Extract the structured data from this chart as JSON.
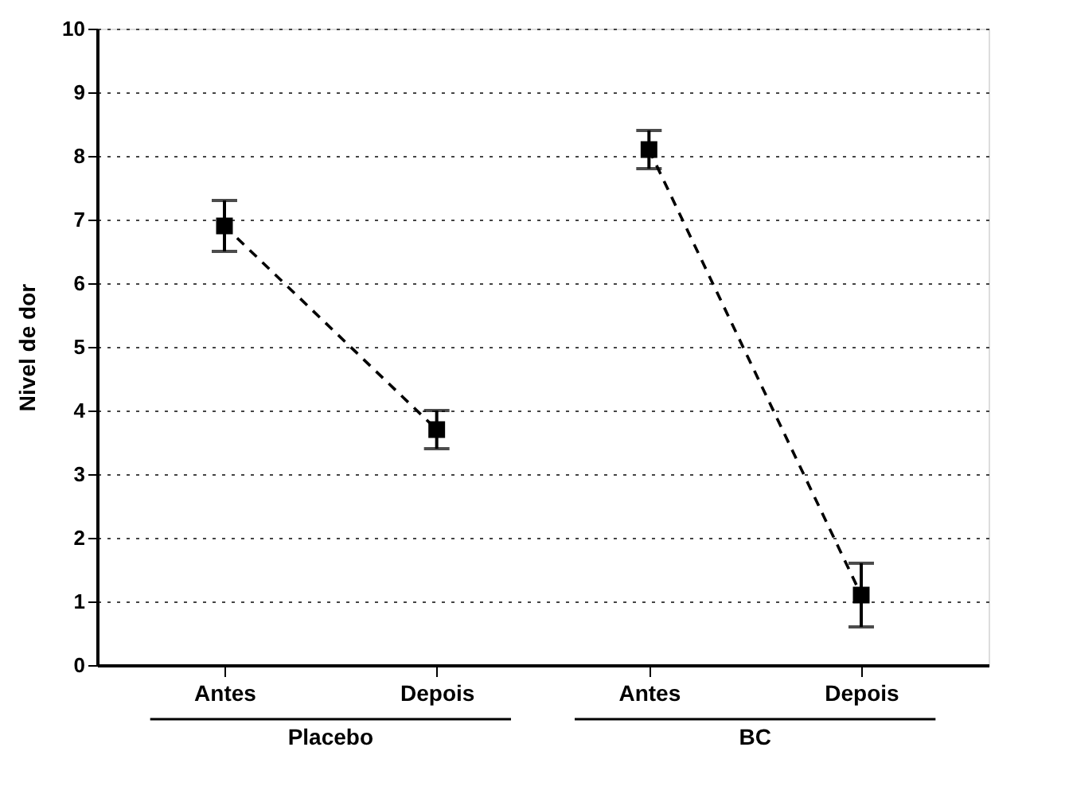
{
  "chart_data": {
    "type": "line",
    "ylabel": "Nivel de dor",
    "categories": [
      "Antes",
      "Depois",
      "Antes",
      "Depois"
    ],
    "series": [
      {
        "color": "#000000",
        "values": [
          6.9,
          3.7,
          null,
          null
        ],
        "errors": [
          0.4,
          0.3,
          null,
          null
        ]
      },
      {
        "color": "#000000",
        "values": [
          null,
          null,
          8.1,
          1.1
        ],
        "errors": [
          null,
          null,
          0.3,
          0.5
        ]
      }
    ],
    "annotations": [
      "Placebo",
      "BC"
    ],
    "ylim": [
      0,
      10
    ],
    "yticks": [
      0,
      1,
      2,
      3,
      4,
      5,
      6,
      7,
      8,
      9,
      10
    ],
    "grid": "y",
    "marker": "square",
    "line_style": "dashed"
  }
}
